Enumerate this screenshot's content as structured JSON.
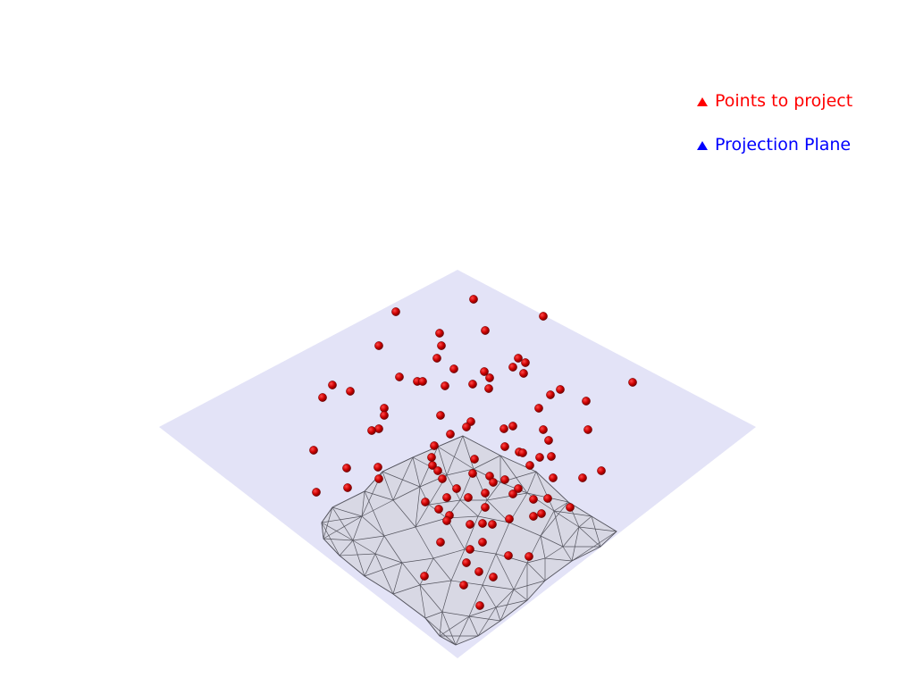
{
  "legend": {
    "items": [
      {
        "label": "Points to project",
        "color": "#ff0000",
        "marker": "triangle-icon"
      },
      {
        "label": "Projection Plane",
        "color": "#0000ff",
        "marker": "triangle-icon"
      }
    ]
  },
  "colors": {
    "background": "#ffffff",
    "plane_fill": "#e3e3f7",
    "surface_fill": "#d8d8e4",
    "surface_edges": "#55555f",
    "point_fill": "#cc0000",
    "point_dark": "#6a0000"
  }
}
